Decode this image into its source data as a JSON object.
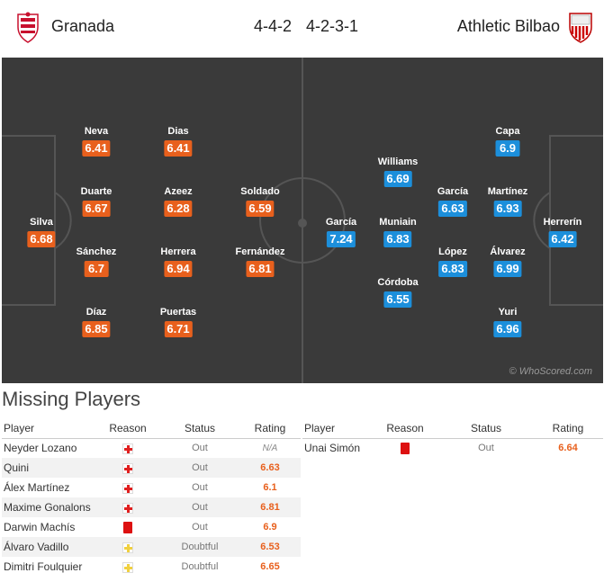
{
  "header": {
    "home_team": "Granada",
    "away_team": "Athletic Bilbao",
    "home_formation": "4-4-2",
    "away_formation": "4-2-3-1"
  },
  "colors": {
    "home_accent": "#e8601d",
    "away_accent": "#1c8fdb",
    "pitch": "#3a3a3a"
  },
  "home_players": [
    {
      "name": "Silva",
      "rating": "6.68"
    },
    {
      "name": "Neva",
      "rating": "6.41"
    },
    {
      "name": "Duarte",
      "rating": "6.67"
    },
    {
      "name": "Sánchez",
      "rating": "6.7"
    },
    {
      "name": "Díaz",
      "rating": "6.85"
    },
    {
      "name": "Dias",
      "rating": "6.41"
    },
    {
      "name": "Azeez",
      "rating": "6.28"
    },
    {
      "name": "Herrera",
      "rating": "6.94"
    },
    {
      "name": "Puertas",
      "rating": "6.71"
    },
    {
      "name": "Soldado",
      "rating": "6.59"
    },
    {
      "name": "Fernández",
      "rating": "6.81"
    }
  ],
  "away_players": [
    {
      "name": "García",
      "rating": "7.24"
    },
    {
      "name": "Williams",
      "rating": "6.69"
    },
    {
      "name": "Muniain",
      "rating": "6.83"
    },
    {
      "name": "Córdoba",
      "rating": "6.55"
    },
    {
      "name": "García",
      "rating": "6.63"
    },
    {
      "name": "López",
      "rating": "6.83"
    },
    {
      "name": "Capa",
      "rating": "6.9"
    },
    {
      "name": "Martínez",
      "rating": "6.93"
    },
    {
      "name": "Álvarez",
      "rating": "6.99"
    },
    {
      "name": "Yuri",
      "rating": "6.96"
    },
    {
      "name": "Herrerín",
      "rating": "6.42"
    }
  ],
  "watermark": "© WhoScored.com",
  "missing": {
    "title": "Missing Players",
    "columns": {
      "player": "Player",
      "reason": "Reason",
      "status": "Status",
      "rating": "Rating"
    },
    "home": [
      {
        "player": "Neyder Lozano",
        "reason": "injury-icon",
        "status": "Out",
        "rating": "N/A"
      },
      {
        "player": "Quini",
        "reason": "injury-icon",
        "status": "Out",
        "rating": "6.63"
      },
      {
        "player": "Álex Martínez",
        "reason": "injury-icon",
        "status": "Out",
        "rating": "6.1"
      },
      {
        "player": "Maxime Gonalons",
        "reason": "injury-icon",
        "status": "Out",
        "rating": "6.81"
      },
      {
        "player": "Darwin Machís",
        "reason": "red-card-icon",
        "status": "Out",
        "rating": "6.9"
      },
      {
        "player": "Álvaro Vadillo",
        "reason": "doubtful-icon",
        "status": "Doubtful",
        "rating": "6.53"
      },
      {
        "player": "Dimitri Foulquier",
        "reason": "doubtful-icon",
        "status": "Doubtful",
        "rating": "6.65"
      }
    ],
    "away": [
      {
        "player": "Unai Simón",
        "reason": "red-card-icon",
        "status": "Out",
        "rating": "6.64"
      }
    ]
  }
}
